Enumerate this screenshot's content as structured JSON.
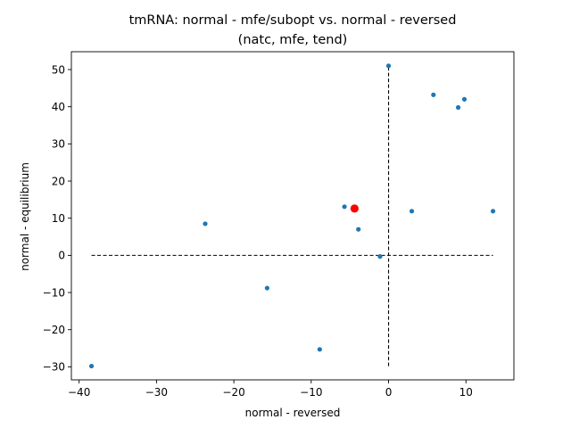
{
  "chart_data": {
    "type": "scatter",
    "title_line1": "tmRNA: normal - mfe/subopt vs. normal - reversed",
    "title_line2": "(natc, mfe, tend)",
    "xlabel": "normal - reversed",
    "ylabel": "normal - equilibrium",
    "xlim": [
      -41.0,
      16.2
    ],
    "ylim": [
      -33.5,
      54.8
    ],
    "xticks": [
      -40,
      -30,
      -20,
      -10,
      0,
      10
    ],
    "xtick_labels": [
      "−40",
      "−30",
      "−20",
      "−10",
      "0",
      "10"
    ],
    "yticks": [
      -30,
      -20,
      -10,
      0,
      10,
      20,
      30,
      40,
      50
    ],
    "ytick_labels": [
      "−30",
      "−20",
      "−10",
      "0",
      "10",
      "20",
      "30",
      "40",
      "50"
    ],
    "grid": false,
    "series": [
      {
        "color": "#1f77b4",
        "points": [
          {
            "x": -38.4,
            "y": -29.8
          },
          {
            "x": -23.7,
            "y": 8.5
          },
          {
            "x": -15.7,
            "y": -8.8
          },
          {
            "x": -8.9,
            "y": -25.3
          },
          {
            "x": -5.7,
            "y": 13.1
          },
          {
            "x": -3.9,
            "y": 7.0
          },
          {
            "x": -1.1,
            "y": -0.3
          },
          {
            "x": 0.0,
            "y": 51.0
          },
          {
            "x": 3.0,
            "y": 11.9
          },
          {
            "x": 5.8,
            "y": 43.2
          },
          {
            "x": 9.0,
            "y": 39.8
          },
          {
            "x": 9.8,
            "y": 42.0
          },
          {
            "x": 13.5,
            "y": 11.9
          }
        ]
      },
      {
        "color": "#ff0000",
        "points": [
          {
            "x": -4.4,
            "y": 12.6
          }
        ]
      }
    ],
    "reference_lines": [
      {
        "orientation": "horizontal",
        "y": 0,
        "x_range": [
          -38.4,
          13.5
        ],
        "style": "dashed",
        "color": "#000000"
      },
      {
        "orientation": "vertical",
        "x": 0,
        "y_range": [
          -29.8,
          51.0
        ],
        "style": "dashed",
        "color": "#000000"
      }
    ]
  }
}
